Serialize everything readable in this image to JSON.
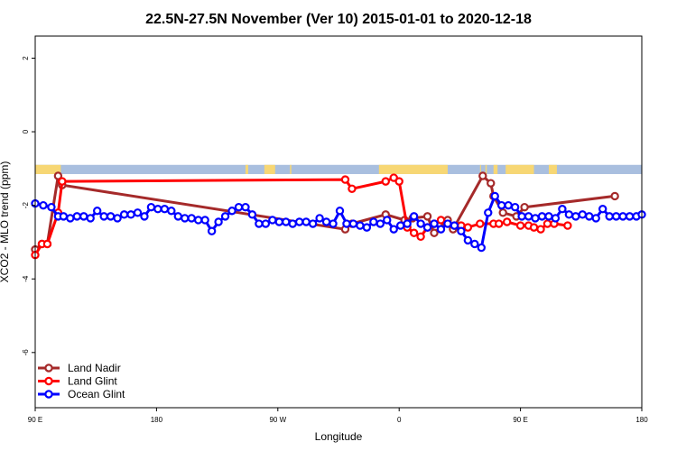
{
  "chart_data": {
    "type": "line",
    "title": "22.5N-27.5N November (Ver 10)   2015-01-01 to 2020-12-18",
    "xlabel": "Longitude",
    "ylabel": "XCO2 - MLO trend (ppm)",
    "xlim": [
      90,
      540
    ],
    "ylim": [
      -7.5,
      2.6
    ],
    "x_tick_values": [
      90,
      180,
      270,
      360,
      450,
      540
    ],
    "x_tick_labels": [
      "90 E",
      "180",
      "90 W",
      "0",
      "90 E",
      "180"
    ],
    "y_tick_values": [
      2,
      0,
      -2,
      -4,
      -6
    ],
    "y_tick_labels": [
      "2",
      "0",
      "-2",
      "-4",
      "-6"
    ],
    "legend_position": "bottom-left",
    "land_ocean_strip": {
      "y_range": [
        -1.15,
        -0.9
      ],
      "ocean_color": "#a9bfdf",
      "land_color": "#f7d774",
      "land_segmen": [
        [
          90,
          109
        ],
        [
          246,
          248
        ],
        [
          260,
          268
        ],
        [
          279,
          280
        ],
        [
          345,
          396
        ],
        [
          420,
          420.5
        ],
        [
          424,
          425
        ],
        [
          430,
          433
        ],
        [
          439,
          460
        ],
        [
          471,
          477
        ]
      ]
    },
    "series": [
      {
        "name": "Land Nadir",
        "color": "#a52a2a",
        "x": [
          90,
          95,
          99,
          107,
          110,
          320,
          325,
          350,
          364,
          370,
          381,
          386,
          396,
          400,
          422,
          428,
          430,
          437,
          447,
          453,
          520
        ],
        "y": [
          -3.2,
          -3.05,
          -3.05,
          -1.2,
          -1.45,
          -2.65,
          -2.5,
          -2.25,
          -2.4,
          -2.35,
          -2.3,
          -2.75,
          -2.4,
          -2.65,
          -1.2,
          -1.4,
          -1.75,
          -2.2,
          -2.3,
          -2.05,
          -1.75
        ]
      },
      {
        "name": "Land Glint",
        "color": "#ff0000",
        "x": [
          90,
          95,
          99,
          107,
          110,
          320,
          325,
          350,
          356,
          360,
          366,
          371,
          376,
          381,
          386,
          391,
          401,
          406,
          411,
          420,
          430,
          434,
          440,
          450,
          456,
          460,
          465,
          470,
          475,
          485
        ],
        "y": [
          -3.35,
          -3.05,
          -3.05,
          -2.2,
          -1.35,
          -1.3,
          -1.55,
          -1.35,
          -1.25,
          -1.35,
          -2.6,
          -2.75,
          -2.85,
          -2.6,
          -2.5,
          -2.4,
          -2.55,
          -2.55,
          -2.6,
          -2.5,
          -2.5,
          -2.5,
          -2.45,
          -2.55,
          -2.55,
          -2.6,
          -2.65,
          -2.5,
          -2.5,
          -2.55
        ]
      },
      {
        "name": "Ocean Glint",
        "color": "#0000ff",
        "x": [
          90,
          96,
          102,
          107,
          111,
          116,
          121,
          126,
          131,
          136,
          141,
          146,
          151,
          156,
          161,
          166,
          171,
          176,
          181,
          186,
          191,
          196,
          201,
          206,
          211,
          216,
          221,
          226,
          231,
          236,
          241,
          246,
          251,
          256,
          261,
          266,
          271,
          276,
          281,
          286,
          291,
          296,
          301,
          306,
          311,
          316,
          321,
          326,
          331,
          336,
          341,
          346,
          351,
          356,
          361,
          366,
          371,
          376,
          381,
          386,
          391,
          396,
          401,
          406,
          411,
          416,
          421,
          426,
          431,
          436,
          441,
          446,
          451,
          456,
          461,
          466,
          471,
          476,
          481,
          486,
          491,
          496,
          501,
          506,
          511,
          516,
          521,
          526,
          531,
          536,
          540
        ],
        "y": [
          -1.95,
          -2.0,
          -2.05,
          -2.3,
          -2.3,
          -2.35,
          -2.3,
          -2.3,
          -2.35,
          -2.15,
          -2.3,
          -2.3,
          -2.35,
          -2.25,
          -2.25,
          -2.2,
          -2.3,
          -2.05,
          -2.1,
          -2.1,
          -2.15,
          -2.3,
          -2.35,
          -2.35,
          -2.4,
          -2.4,
          -2.7,
          -2.45,
          -2.3,
          -2.15,
          -2.05,
          -2.05,
          -2.25,
          -2.5,
          -2.5,
          -2.4,
          -2.45,
          -2.45,
          -2.5,
          -2.45,
          -2.45,
          -2.5,
          -2.35,
          -2.45,
          -2.5,
          -2.15,
          -2.5,
          -2.5,
          -2.55,
          -2.6,
          -2.45,
          -2.5,
          -2.4,
          -2.65,
          -2.55,
          -2.5,
          -2.3,
          -2.5,
          -2.6,
          -2.5,
          -2.65,
          -2.5,
          -2.55,
          -2.7,
          -2.95,
          -3.05,
          -3.15,
          -2.2,
          -1.75,
          -2.0,
          -2.0,
          -2.05,
          -2.3,
          -2.3,
          -2.35,
          -2.3,
          -2.3,
          -2.35,
          -2.1,
          -2.25,
          -2.3,
          -2.25,
          -2.3,
          -2.35,
          -2.1,
          -2.3,
          -2.3,
          -2.3,
          -2.3,
          -2.3,
          -2.25
        ]
      }
    ]
  }
}
